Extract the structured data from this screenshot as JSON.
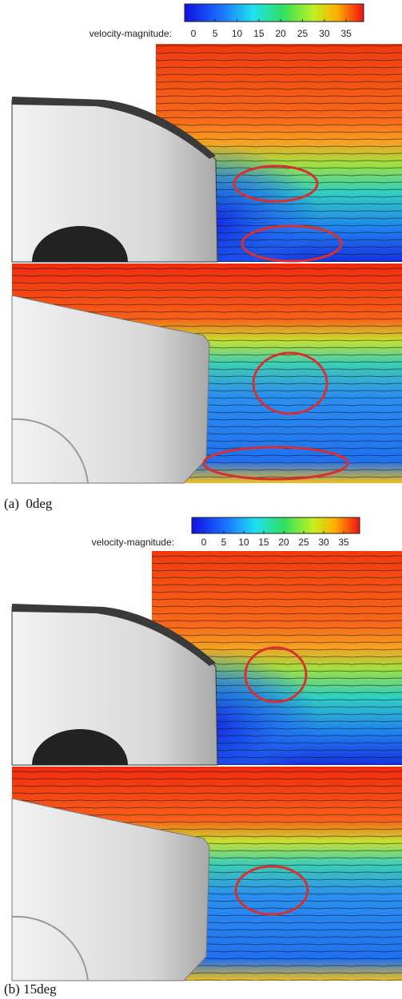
{
  "panels": [
    {
      "colorbar": {
        "label": "velocity-magnitude:",
        "lim": [
          -2,
          39
        ],
        "ticks": [
          0,
          5,
          10,
          15,
          20,
          25,
          30,
          35
        ]
      },
      "caption": "(a)  0deg"
    },
    {
      "colorbar": {
        "label": "velocity-magnitude:",
        "lim": [
          -3,
          39
        ],
        "ticks": [
          0,
          5,
          10,
          15,
          20,
          25,
          30,
          35
        ]
      },
      "caption": "(b) 15deg"
    }
  ]
}
